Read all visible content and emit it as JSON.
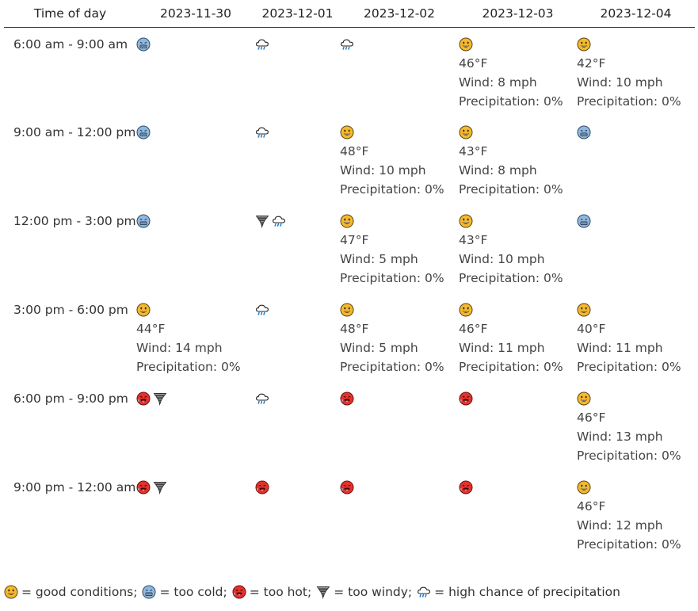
{
  "header": {
    "time_col": "Time of day",
    "dates": [
      "2023-11-30",
      "2023-12-01",
      "2023-12-02",
      "2023-12-03",
      "2023-12-04"
    ]
  },
  "rows": [
    {
      "time": "6:00 am - 9:00 am",
      "cells": [
        {
          "icons": [
            "cold-face-icon"
          ]
        },
        {
          "icons": [
            "rain-cloud-icon"
          ]
        },
        {
          "icons": [
            "rain-cloud-icon"
          ]
        },
        {
          "icons": [
            "good-face-icon"
          ],
          "temp": "46°F",
          "wind": "Wind: 8 mph",
          "precip": "Precipitation: 0%"
        },
        {
          "icons": [
            "good-face-icon"
          ],
          "temp": "42°F",
          "wind": "Wind: 10 mph",
          "precip": "Precipitation: 0%"
        }
      ]
    },
    {
      "time": "9:00 am - 12:00 pm",
      "cells": [
        {
          "icons": [
            "cold-face-icon"
          ]
        },
        {
          "icons": [
            "rain-cloud-icon"
          ]
        },
        {
          "icons": [
            "good-face-icon"
          ],
          "temp": "48°F",
          "wind": "Wind: 10 mph",
          "precip": "Precipitation: 0%"
        },
        {
          "icons": [
            "good-face-icon"
          ],
          "temp": "43°F",
          "wind": "Wind: 8 mph",
          "precip": "Precipitation: 0%"
        },
        {
          "icons": [
            "cold-face-icon"
          ]
        }
      ]
    },
    {
      "time": "12:00 pm - 3:00 pm",
      "cells": [
        {
          "icons": [
            "cold-face-icon"
          ]
        },
        {
          "icons": [
            "tornado-icon",
            "rain-cloud-icon"
          ]
        },
        {
          "icons": [
            "good-face-icon"
          ],
          "temp": "47°F",
          "wind": "Wind: 5 mph",
          "precip": "Precipitation: 0%"
        },
        {
          "icons": [
            "good-face-icon"
          ],
          "temp": "43°F",
          "wind": "Wind: 10 mph",
          "precip": "Precipitation: 0%"
        },
        {
          "icons": [
            "cold-face-icon"
          ]
        }
      ]
    },
    {
      "time": "3:00 pm - 6:00 pm",
      "cells": [
        {
          "icons": [
            "good-face-icon"
          ],
          "temp": "44°F",
          "wind": "Wind: 14 mph",
          "precip": "Precipitation: 0%"
        },
        {
          "icons": [
            "rain-cloud-icon"
          ]
        },
        {
          "icons": [
            "good-face-icon"
          ],
          "temp": "48°F",
          "wind": "Wind: 5 mph",
          "precip": "Precipitation: 0%"
        },
        {
          "icons": [
            "good-face-icon"
          ],
          "temp": "46°F",
          "wind": "Wind: 11 mph",
          "precip": "Precipitation: 0%"
        },
        {
          "icons": [
            "good-face-icon"
          ],
          "temp": "40°F",
          "wind": "Wind: 11 mph",
          "precip": "Precipitation: 0%"
        }
      ]
    },
    {
      "time": "6:00 pm - 9:00 pm",
      "cells": [
        {
          "icons": [
            "hot-face-icon",
            "tornado-icon"
          ]
        },
        {
          "icons": [
            "rain-cloud-icon"
          ]
        },
        {
          "icons": [
            "hot-face-icon"
          ]
        },
        {
          "icons": [
            "hot-face-icon"
          ]
        },
        {
          "icons": [
            "good-face-icon"
          ],
          "temp": "46°F",
          "wind": "Wind: 13 mph",
          "precip": "Precipitation: 0%"
        }
      ]
    },
    {
      "time": "9:00 pm - 12:00 am",
      "cells": [
        {
          "icons": [
            "hot-face-icon",
            "tornado-icon"
          ]
        },
        {
          "icons": [
            "hot-face-icon"
          ]
        },
        {
          "icons": [
            "hot-face-icon"
          ]
        },
        {
          "icons": [
            "hot-face-icon"
          ]
        },
        {
          "icons": [
            "good-face-icon"
          ],
          "temp": "46°F",
          "wind": "Wind: 12 mph",
          "precip": "Precipitation: 0%"
        }
      ]
    }
  ],
  "legend": [
    {
      "icon": "good-face-icon",
      "text": "= good conditions;"
    },
    {
      "icon": "cold-face-icon",
      "text": "= too cold;"
    },
    {
      "icon": "hot-face-icon",
      "text": "= too hot;"
    },
    {
      "icon": "tornado-icon",
      "text": "= too windy;"
    },
    {
      "icon": "rain-cloud-icon",
      "text": "= high chance of precipitation"
    }
  ],
  "colors": {
    "good": "#f5b92f",
    "cold": "#8fb8df",
    "hot": "#e4322b",
    "tornado": "#8a8a8a",
    "cloud": "#ffffff"
  }
}
